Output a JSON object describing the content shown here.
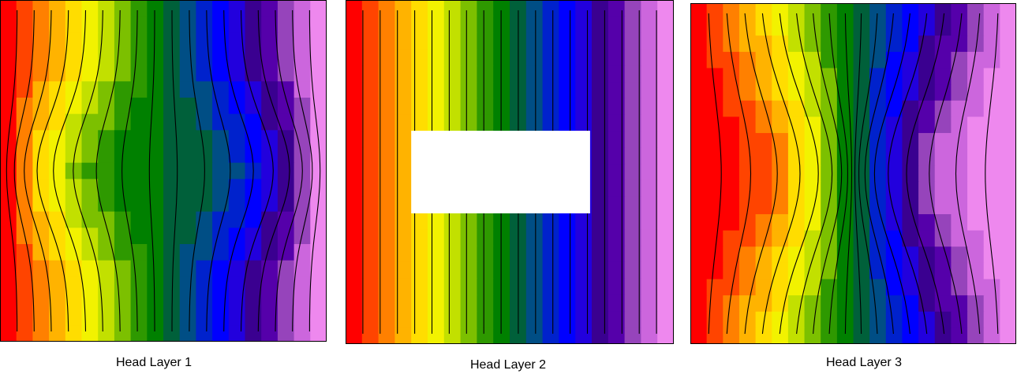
{
  "palette": [
    "#ff0000",
    "#ff4400",
    "#ff8000",
    "#ffb300",
    "#ffdd00",
    "#f2f200",
    "#c2e000",
    "#7cc000",
    "#2e9900",
    "#008000",
    "#00603a",
    "#004e85",
    "#0022cc",
    "#0000ff",
    "#2200dd",
    "#3a0090",
    "#5500aa",
    "#9644bb",
    "#cc66dd",
    "#ee88ee"
  ],
  "panels": [
    {
      "caption": "Head Layer 1",
      "pattern": "layer1",
      "hole": false
    },
    {
      "caption": "Head Layer 2",
      "pattern": "layer2",
      "hole": true
    },
    {
      "caption": "Head Layer 3",
      "pattern": "layer3",
      "hole": false
    }
  ],
  "colors": {
    "frame": "#000000",
    "contour": "#000000",
    "hole": "#ffffff"
  }
}
